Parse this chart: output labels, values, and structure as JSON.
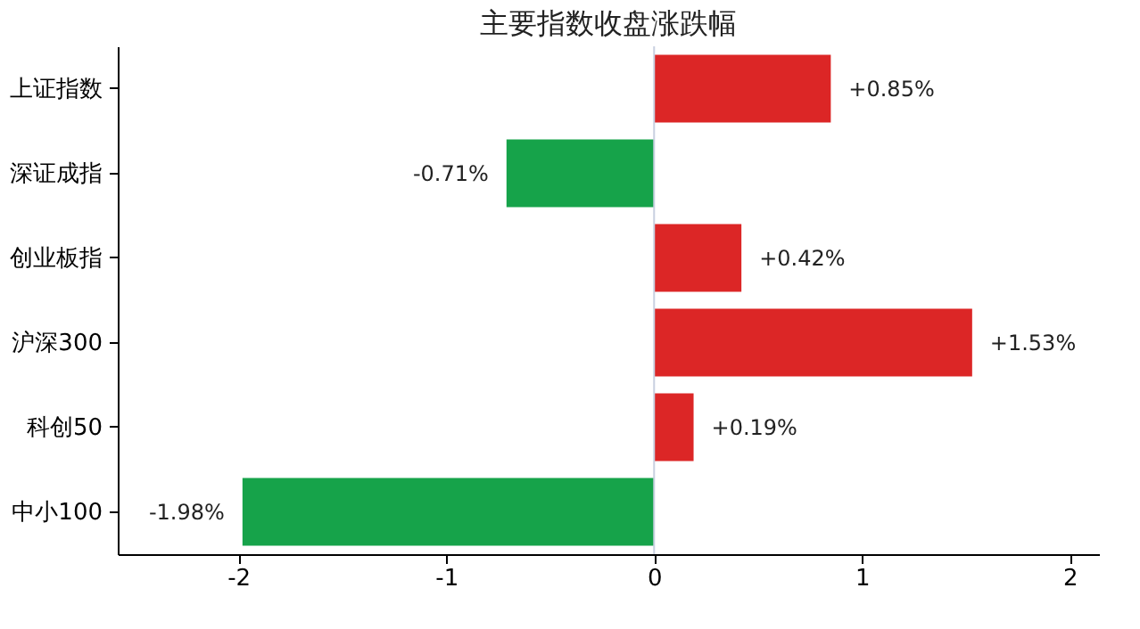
{
  "chart_data": {
    "type": "bar",
    "orientation": "horizontal",
    "title": "主要指数收盘涨跌幅",
    "categories": [
      "上证指数",
      "深证成指",
      "创业板指",
      "沪深300",
      "科创50",
      "中小100"
    ],
    "values": [
      0.85,
      -0.71,
      0.42,
      1.53,
      0.19,
      -1.98
    ],
    "colors": [
      "#dc2626",
      "#16a34a",
      "#dc2626",
      "#dc2626",
      "#dc2626",
      "#16a34a"
    ],
    "value_labels": [
      "+0.85%",
      "-0.71%",
      "+0.42%",
      "+1.53%",
      "+0.19%",
      "-1.98%"
    ],
    "xlim": [
      -2.58,
      2.14
    ],
    "xticks": [
      -2,
      -1,
      0,
      1,
      2
    ],
    "ref_lines": [
      {
        "axis": "x",
        "value": 0,
        "color": "#c8d0e0"
      }
    ]
  }
}
